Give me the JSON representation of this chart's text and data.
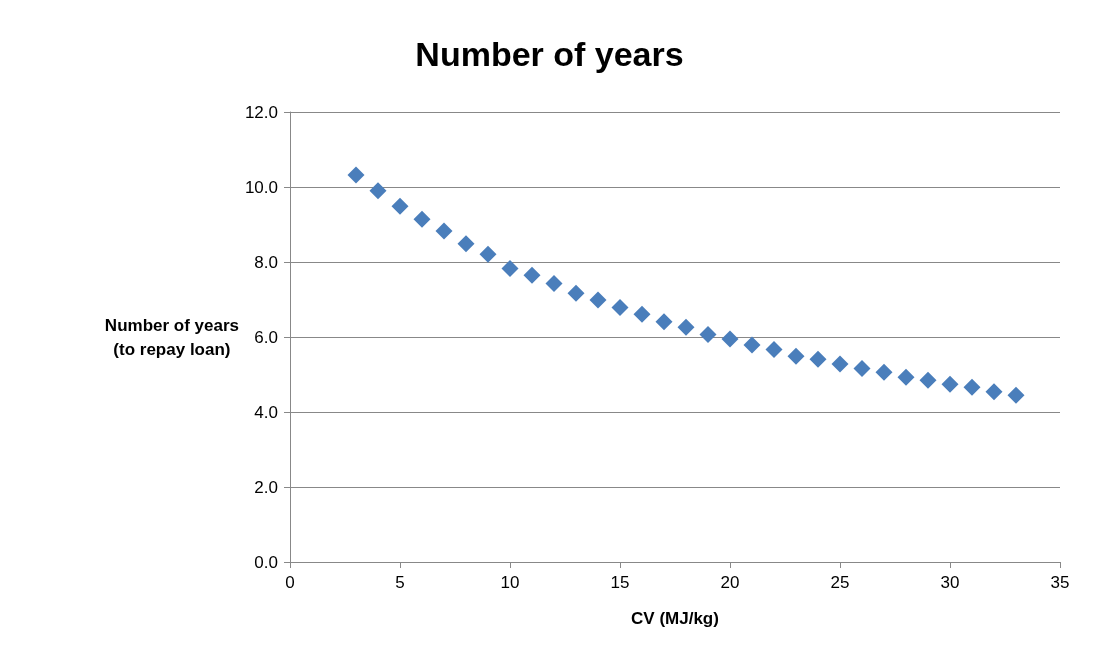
{
  "chart_data": {
    "type": "scatter",
    "title": "Number of years",
    "xlabel": "CV (MJ/kg)",
    "ylabel": "Number of years\n(to repay loan)",
    "x": [
      3,
      4,
      5,
      6,
      7,
      8,
      9,
      10,
      11,
      12,
      13,
      14,
      15,
      16,
      17,
      18,
      19,
      20,
      21,
      22,
      23,
      24,
      25,
      26,
      27,
      28,
      29,
      30,
      31,
      32,
      33
    ],
    "series": [
      {
        "color": "#4a7ebb",
        "values": [
          10.32,
          9.9,
          9.49,
          9.14,
          8.83,
          8.49,
          8.21,
          7.83,
          7.65,
          7.43,
          7.17,
          6.99,
          6.79,
          6.61,
          6.41,
          6.26,
          6.07,
          5.95,
          5.79,
          5.67,
          5.49,
          5.41,
          5.28,
          5.16,
          5.06,
          4.93,
          4.85,
          4.74,
          4.66,
          4.54,
          4.45
        ]
      }
    ],
    "xlim": [
      0,
      35
    ],
    "xticks": [
      0,
      5,
      10,
      15,
      20,
      25,
      30,
      35
    ],
    "ylim": [
      0,
      12
    ],
    "yticks": [
      {
        "value": 0,
        "label": "0.0"
      },
      {
        "value": 2,
        "label": "2.0"
      },
      {
        "value": 4,
        "label": "4.0"
      },
      {
        "value": 6,
        "label": "6.0"
      },
      {
        "value": 8,
        "label": "8.0"
      },
      {
        "value": 10,
        "label": "10.0"
      },
      {
        "value": 12,
        "label": "12.0"
      }
    ],
    "grid": "y",
    "marker": "diamond"
  }
}
